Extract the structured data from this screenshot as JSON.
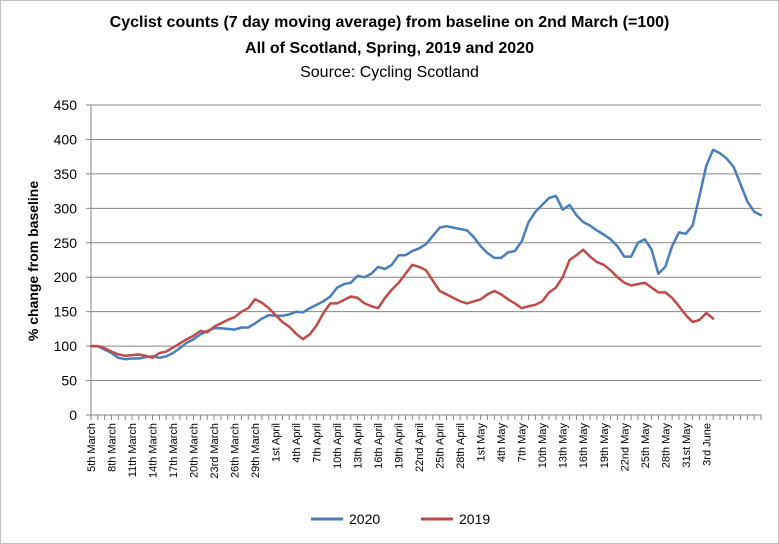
{
  "chart_data": {
    "type": "line",
    "title": "Cyclist counts (7 day moving average) from baseline on 2nd March (=100)",
    "subtitle": "All of Scotland, Spring, 2019 and 2020",
    "source": "Source: Cycling Scotland",
    "xlabel": "",
    "ylabel": "% change from baseline",
    "ylim": [
      0,
      450
    ],
    "yticks": [
      0,
      50,
      100,
      150,
      200,
      250,
      300,
      350,
      400,
      450
    ],
    "x_start_label": "5th March",
    "x_tick_labels": [
      "5th March",
      "8th March",
      "11th March",
      "14th March",
      "17th March",
      "20th March",
      "23rd March",
      "26th March",
      "29th March",
      "1st April",
      "4th April",
      "7th April",
      "10th April",
      "13th April",
      "16th April",
      "19th April",
      "22nd April",
      "25th April",
      "28th April",
      "1st May",
      "4th May",
      "7th May",
      "10th May",
      "13th May",
      "16th May",
      "19th May",
      "22nd May",
      "25th May",
      "28th May",
      "31st May",
      "3rd June"
    ],
    "legend_position": "bottom",
    "grid": "horizontal",
    "series": [
      {
        "name": "2020",
        "color": "#4a7ebb",
        "values": [
          100,
          100,
          95,
          90,
          83,
          81,
          82,
          82,
          84,
          85,
          83,
          85,
          90,
          97,
          105,
          110,
          117,
          122,
          126,
          126,
          125,
          124,
          127,
          127,
          133,
          140,
          145,
          144,
          144,
          146,
          150,
          149,
          155,
          160,
          165,
          172,
          185,
          190,
          192,
          202,
          200,
          205,
          215,
          212,
          218,
          232,
          232,
          238,
          242,
          248,
          260,
          272,
          274,
          272,
          270,
          268,
          258,
          245,
          235,
          228,
          228,
          236,
          238,
          252,
          280,
          295,
          305,
          315,
          318,
          298,
          305,
          290,
          280,
          275,
          268,
          262,
          255,
          245,
          230,
          230,
          250,
          255,
          240,
          205,
          215,
          245,
          265,
          263,
          275,
          318,
          362,
          385,
          380,
          372,
          360,
          335,
          310,
          295,
          290
        ]
      },
      {
        "name": "2019",
        "color": "#be4b48",
        "values": [
          100,
          100,
          97,
          92,
          88,
          86,
          87,
          88,
          86,
          83,
          90,
          92,
          98,
          104,
          110,
          115,
          122,
          120,
          128,
          133,
          138,
          142,
          150,
          155,
          168,
          163,
          155,
          145,
          135,
          128,
          118,
          110,
          117,
          130,
          148,
          162,
          162,
          167,
          172,
          170,
          162,
          158,
          155,
          170,
          182,
          192,
          205,
          218,
          215,
          210,
          195,
          180,
          175,
          170,
          165,
          162,
          165,
          168,
          175,
          180,
          175,
          168,
          162,
          155,
          158,
          160,
          165,
          178,
          185,
          200,
          225,
          232,
          240,
          230,
          222,
          218,
          210,
          200,
          192,
          188,
          190,
          192,
          185,
          178,
          178,
          170,
          158,
          145,
          135,
          138,
          148,
          140
        ]
      }
    ]
  }
}
